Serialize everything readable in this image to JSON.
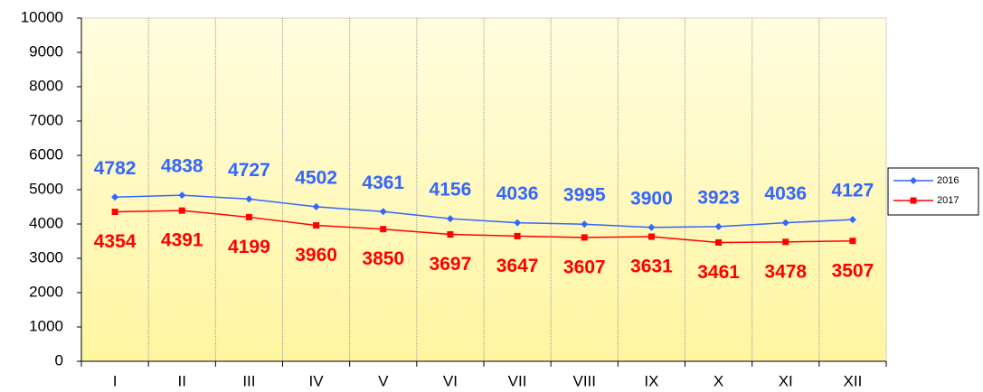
{
  "chart_data": {
    "type": "line",
    "categories": [
      "I",
      "II",
      "III",
      "IV",
      "V",
      "VI",
      "VII",
      "VIII",
      "IX",
      "X",
      "XI",
      "XII"
    ],
    "series": [
      {
        "name": "2016",
        "color": "#3366ff",
        "marker": "diamond",
        "values": [
          4782,
          4838,
          4727,
          4502,
          4361,
          4156,
          4036,
          3995,
          3900,
          3923,
          4036,
          4127
        ]
      },
      {
        "name": "2017",
        "color": "#ff0000",
        "marker": "square",
        "values": [
          4354,
          4391,
          4199,
          3960,
          3850,
          3697,
          3647,
          3607,
          3631,
          3461,
          3478,
          3507
        ]
      }
    ],
    "ylim": [
      0,
      10000
    ],
    "yticks": [
      0,
      1000,
      2000,
      3000,
      4000,
      5000,
      6000,
      7000,
      8000,
      9000,
      10000
    ],
    "legend": "right"
  }
}
